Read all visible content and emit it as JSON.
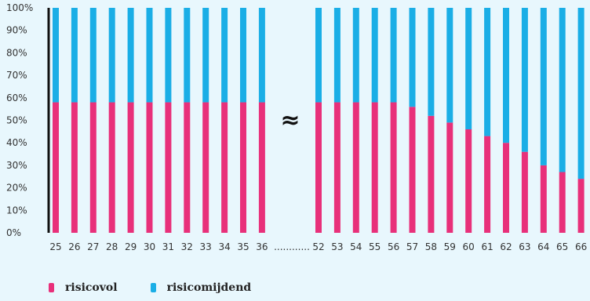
{
  "chart_data": {
    "type": "bar",
    "stacked": true,
    "categories": [
      "25",
      "26",
      "27",
      "28",
      "29",
      "30",
      "31",
      "32",
      "33",
      "34",
      "35",
      "36",
      "52",
      "53",
      "54",
      "55",
      "56",
      "57",
      "58",
      "59",
      "60",
      "61",
      "62",
      "63",
      "64",
      "65",
      "66"
    ],
    "series": [
      {
        "name": "risicovol",
        "color": "#e8307a",
        "values": [
          58,
          58,
          58,
          58,
          58,
          58,
          58,
          58,
          58,
          58,
          58,
          58,
          58,
          58,
          58,
          58,
          58,
          56,
          52,
          49,
          46,
          43,
          40,
          36,
          30,
          27,
          24
        ]
      },
      {
        "name": "risicomijdend",
        "color": "#1aaee6",
        "values": [
          42,
          42,
          42,
          42,
          42,
          42,
          42,
          42,
          42,
          42,
          42,
          42,
          42,
          42,
          42,
          42,
          42,
          44,
          48,
          51,
          54,
          57,
          60,
          64,
          70,
          73,
          76
        ]
      }
    ],
    "ylim": [
      0,
      100
    ],
    "yticks": [
      "0%",
      "10%",
      "20%",
      "30%",
      "40%",
      "50%",
      "60%",
      "70%",
      "80%",
      "90%",
      "100%"
    ],
    "break_symbol": "≈",
    "gap_label": "............",
    "legend": "bottom-left",
    "grid": false
  }
}
